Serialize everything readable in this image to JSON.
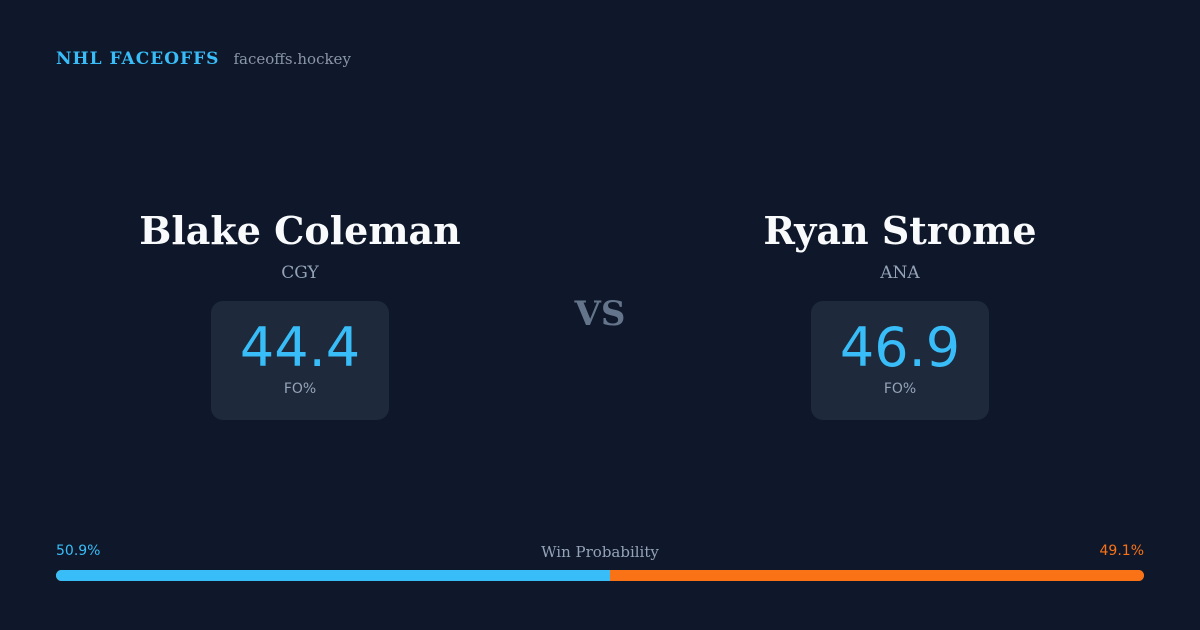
{
  "brand": {
    "name": "NHL FACEOFFS",
    "url": "faceoffs.hockey"
  },
  "players": [
    {
      "name": "Blake Coleman",
      "team": "CGY",
      "fo_pct": "44.4",
      "stat_label": "FO%"
    },
    {
      "name": "Ryan Strome",
      "team": "ANA",
      "fo_pct": "46.9",
      "stat_label": "FO%"
    }
  ],
  "vs_label": "VS",
  "win_probability": {
    "title": "Win Probability",
    "left_label": "50.9%",
    "right_label": "49.1%",
    "left_value": 50.9,
    "right_value": 49.1
  },
  "colors": {
    "background": "#0f172a",
    "left_accent": "#38bdf8",
    "right_accent": "#f97316",
    "card": "#1e293b"
  }
}
